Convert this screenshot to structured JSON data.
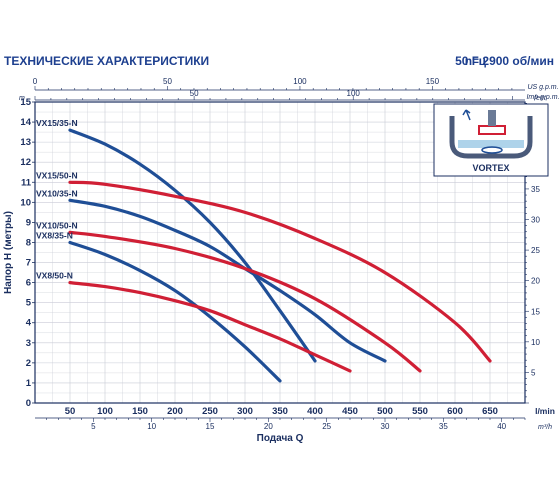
{
  "header": {
    "title": "ТЕХНИЧЕСКИЕ ХАРАКТЕРИСТИКИ",
    "freq": "50 Гц",
    "rpm": "n= 2900 об/мин"
  },
  "inset": {
    "label": "VORTEX"
  },
  "colors": {
    "frame": "#1b2f60",
    "grid": "#c9cbd6",
    "blue_series": "#1f4e96",
    "red_series": "#d01f35"
  },
  "chart_data": {
    "type": "line",
    "xlabel": "Подача Q",
    "ylabel": "Напор H (метры)",
    "x_unit": "l/min",
    "y_unit": "m",
    "xlim": [
      0,
      700
    ],
    "ylim": [
      0,
      15
    ],
    "grid": true,
    "axes": {
      "bottom_lmin": {
        "unit": "l/min",
        "ticks": [
          "50",
          "100",
          "150",
          "200",
          "250",
          "300",
          "350",
          "400",
          "450",
          "500",
          "550",
          "600",
          "650"
        ]
      },
      "bottom_m3h": {
        "unit": "m³/h",
        "ticks": [
          "5",
          "10",
          "15",
          "20",
          "25",
          "30",
          "35",
          "40"
        ]
      },
      "left_m": {
        "unit": "m",
        "ticks": [
          "0",
          "1",
          "2",
          "3",
          "4",
          "5",
          "6",
          "7",
          "8",
          "9",
          "10",
          "11",
          "12",
          "13",
          "14",
          "15"
        ]
      },
      "top_usgpm": {
        "unit": "US g.p.m.",
        "ticks": [
          "0",
          "50",
          "100",
          "150"
        ]
      },
      "top_impgpm": {
        "unit": "Imp g.p.m.",
        "ticks": [
          "50",
          "100"
        ]
      },
      "right_feet": {
        "unit": "feet",
        "ticks": [
          "5",
          "10",
          "15",
          "20",
          "25",
          "30",
          "35",
          "40",
          "45"
        ]
      }
    },
    "series": [
      {
        "name": "VX15/35-N",
        "color": "#1f4e96",
        "x": [
          50,
          100,
          150,
          200,
          250,
          300,
          350,
          400
        ],
        "y": [
          13.6,
          12.9,
          11.9,
          10.6,
          9.0,
          7.0,
          4.6,
          2.1
        ]
      },
      {
        "name": "VX15/50-N",
        "color": "#d01f35",
        "x": [
          50,
          100,
          200,
          300,
          400,
          500,
          600,
          650
        ],
        "y": [
          11.0,
          10.9,
          10.3,
          9.5,
          8.2,
          6.5,
          4.0,
          2.1
        ]
      },
      {
        "name": "VX10/35-N",
        "color": "#1f4e96",
        "x": [
          50,
          100,
          150,
          200,
          250,
          300,
          350,
          400,
          450,
          500
        ],
        "y": [
          10.1,
          9.8,
          9.3,
          8.6,
          7.8,
          6.7,
          5.6,
          4.4,
          3.0,
          2.1
        ]
      },
      {
        "name": "VX10/50-N",
        "color": "#d01f35",
        "x": [
          50,
          100,
          200,
          300,
          400,
          500,
          550
        ],
        "y": [
          8.5,
          8.3,
          7.7,
          6.7,
          5.2,
          3.0,
          1.6
        ]
      },
      {
        "name": "VX8/35-N",
        "color": "#1f4e96",
        "x": [
          50,
          100,
          150,
          200,
          250,
          300,
          350
        ],
        "y": [
          8.0,
          7.4,
          6.6,
          5.6,
          4.3,
          2.8,
          1.1
        ]
      },
      {
        "name": "VX8/50-N",
        "color": "#d01f35",
        "x": [
          50,
          100,
          150,
          200,
          250,
          300,
          350,
          400,
          450
        ],
        "y": [
          6.0,
          5.8,
          5.5,
          5.1,
          4.6,
          3.9,
          3.2,
          2.4,
          1.6
        ]
      }
    ]
  }
}
